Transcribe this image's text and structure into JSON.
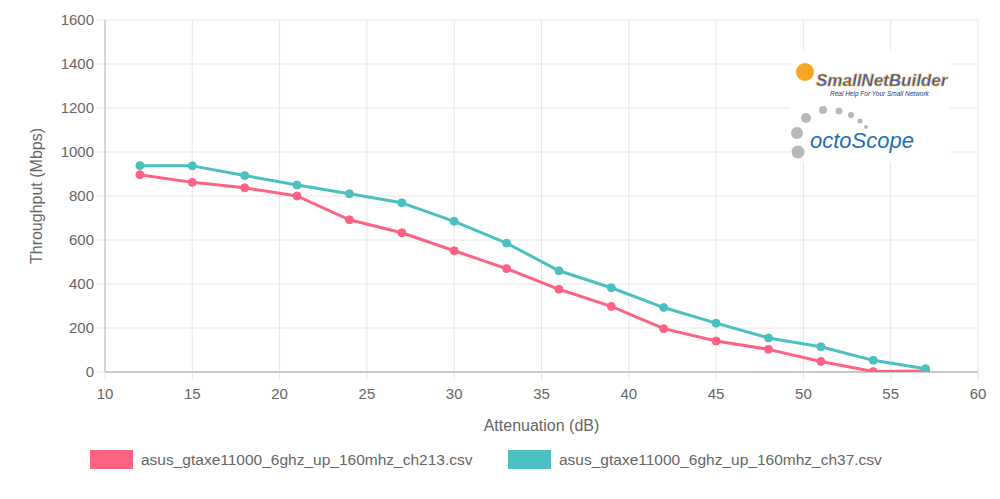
{
  "chart_data": {
    "type": "line",
    "x_label": "Attenuation (dB)",
    "y_label": "Throughput (Mbps)",
    "x": [
      12,
      15,
      18,
      21,
      24,
      27,
      30,
      33,
      36,
      39,
      42,
      45,
      48,
      51,
      54,
      57
    ],
    "series": [
      {
        "name": "asus_gtaxe11000_6ghz_up_160mhz_ch213.csv",
        "color": "#ff6384",
        "marker": "circle",
        "line_style": "solid",
        "values": [
          897,
          862,
          837,
          800,
          692,
          633,
          551,
          470,
          376,
          298,
          197,
          141,
          103,
          48,
          2,
          5
        ]
      },
      {
        "name": "asus_gtaxe11000_6ghz_up_160mhz_ch37.csv",
        "color": "#4bc0c0",
        "marker": "circle",
        "line_style": "solid",
        "values": [
          938,
          937,
          893,
          850,
          810,
          769,
          685,
          586,
          460,
          383,
          293,
          222,
          155,
          115,
          53,
          15
        ]
      }
    ],
    "xlim": [
      10,
      60
    ],
    "xticks": [
      10,
      15,
      20,
      25,
      30,
      35,
      40,
      45,
      50,
      55,
      60
    ],
    "ylim": [
      0,
      1600
    ],
    "yticks": [
      0,
      200,
      400,
      600,
      800,
      1000,
      1200,
      1400,
      1600
    ],
    "grid": true,
    "legend": "bottom",
    "annotations": [
      "SmallNetBuilder",
      "Real Help For Your Small Network",
      "octoScope"
    ]
  }
}
